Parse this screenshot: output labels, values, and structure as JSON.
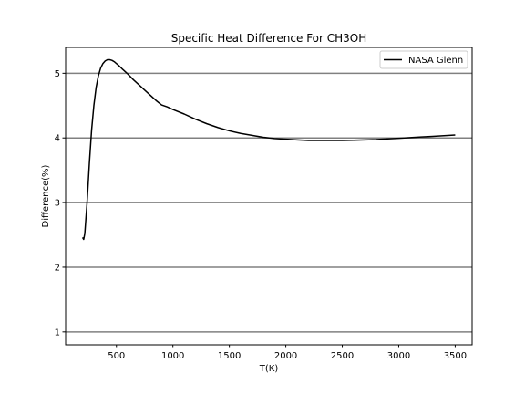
{
  "chart_data": {
    "type": "line",
    "title": "Specific Heat Difference For CH3OH",
    "xlabel": "T(K)",
    "ylabel": "Difference(%)",
    "xlim": [
      50,
      3650
    ],
    "ylim": [
      0.8,
      5.4
    ],
    "xticks": [
      500,
      1000,
      1500,
      2000,
      2500,
      3000,
      3500
    ],
    "yticks": [
      1,
      2,
      3,
      4,
      5
    ],
    "grid": "horizontal",
    "legend_position": "top-right",
    "colors": {
      "line": "#000000",
      "grid": "#808080"
    },
    "series": [
      {
        "name": "NASA Glenn",
        "x": [
          200,
          210,
          220,
          240,
          260,
          280,
          300,
          320,
          340,
          360,
          380,
          400,
          420,
          440,
          460,
          480,
          500,
          520,
          550,
          600,
          650,
          700,
          750,
          800,
          850,
          900,
          950,
          1000,
          1100,
          1200,
          1300,
          1400,
          1500,
          1600,
          1700,
          1800,
          1900,
          2000,
          2100,
          2200,
          2300,
          2400,
          2500,
          2600,
          2700,
          2800,
          2900,
          3000,
          3100,
          3200,
          3300,
          3400,
          3500
        ],
        "y": [
          2.46,
          2.43,
          2.52,
          3.0,
          3.6,
          4.12,
          4.5,
          4.78,
          4.96,
          5.08,
          5.15,
          5.19,
          5.21,
          5.21,
          5.2,
          5.18,
          5.15,
          5.12,
          5.07,
          4.99,
          4.9,
          4.82,
          4.74,
          4.66,
          4.58,
          4.51,
          4.48,
          4.44,
          4.37,
          4.29,
          4.22,
          4.16,
          4.11,
          4.07,
          4.04,
          4.01,
          3.99,
          3.98,
          3.97,
          3.96,
          3.96,
          3.96,
          3.96,
          3.965,
          3.97,
          3.975,
          3.985,
          3.995,
          4.005,
          4.015,
          4.025,
          4.035,
          4.045
        ]
      }
    ]
  }
}
